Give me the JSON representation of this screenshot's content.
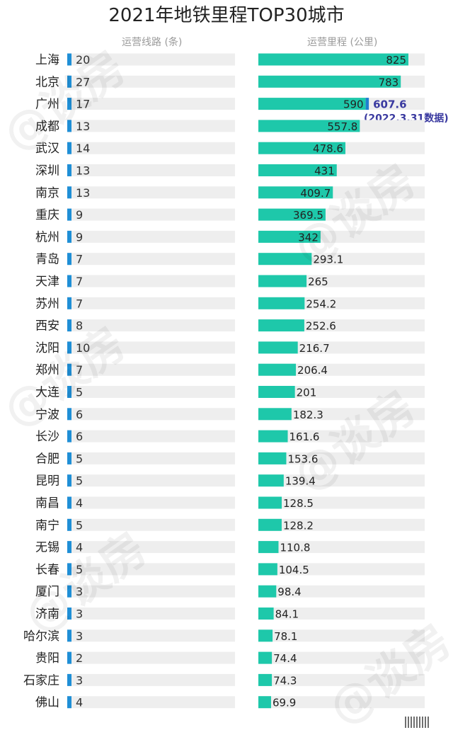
{
  "chart_data": {
    "type": "bar",
    "title": "2021年地铁里程TOP30城市",
    "lines_header": "运营线路 (条)",
    "km_header": "运营里程 (公里)",
    "categories": [
      "上海",
      "北京",
      "广州",
      "成都",
      "武汉",
      "深圳",
      "南京",
      "重庆",
      "杭州",
      "青岛",
      "天津",
      "苏州",
      "西安",
      "沈阳",
      "郑州",
      "大连",
      "宁波",
      "长沙",
      "合肥",
      "昆明",
      "南昌",
      "南宁",
      "无锡",
      "长春",
      "厦门",
      "济南",
      "哈尔滨",
      "贵阳",
      "石家庄",
      "佛山"
    ],
    "series": [
      {
        "name": "运营线路 (条)",
        "values": [
          20,
          27,
          17,
          13,
          14,
          13,
          13,
          9,
          9,
          7,
          7,
          7,
          8,
          10,
          7,
          5,
          6,
          6,
          5,
          5,
          4,
          5,
          4,
          5,
          3,
          3,
          3,
          2,
          3,
          4
        ]
      },
      {
        "name": "运营里程 (公里)",
        "values": [
          825,
          783,
          590,
          557.8,
          478.6,
          431,
          409.7,
          369.5,
          342,
          293.1,
          265,
          254.2,
          252.6,
          216.7,
          206.4,
          201,
          182.3,
          161.6,
          153.6,
          139.4,
          128.5,
          128.2,
          110.8,
          104.5,
          98.4,
          84.1,
          78.1,
          74.4,
          74.3,
          69.9
        ]
      }
    ],
    "km_labels": [
      "825",
      "783",
      "590",
      "557.8",
      "478.6",
      "431",
      "409.7",
      "369.5",
      "342",
      "293.1",
      "265",
      "254.2",
      "252.6",
      "216.7",
      "206.4",
      "201",
      "182.3",
      "161.6",
      "153.6",
      "139.4",
      "128.5",
      "128.2",
      "110.8",
      "104.5",
      "98.4",
      "84.1",
      "78.1",
      "74.4",
      "74.3",
      "69.9"
    ],
    "annotation": {
      "category": "广州",
      "value": 607.6,
      "label": "607.6",
      "note": "(2022.3.31数据)"
    },
    "colors": {
      "km_bar": "#1ec8aa",
      "km_extra": "#1f7fd0",
      "lines_bar": "#1f8fd6",
      "track": "#eeeeee",
      "annotation_text": "#3a3aa0"
    }
  },
  "watermark": "@谈房"
}
